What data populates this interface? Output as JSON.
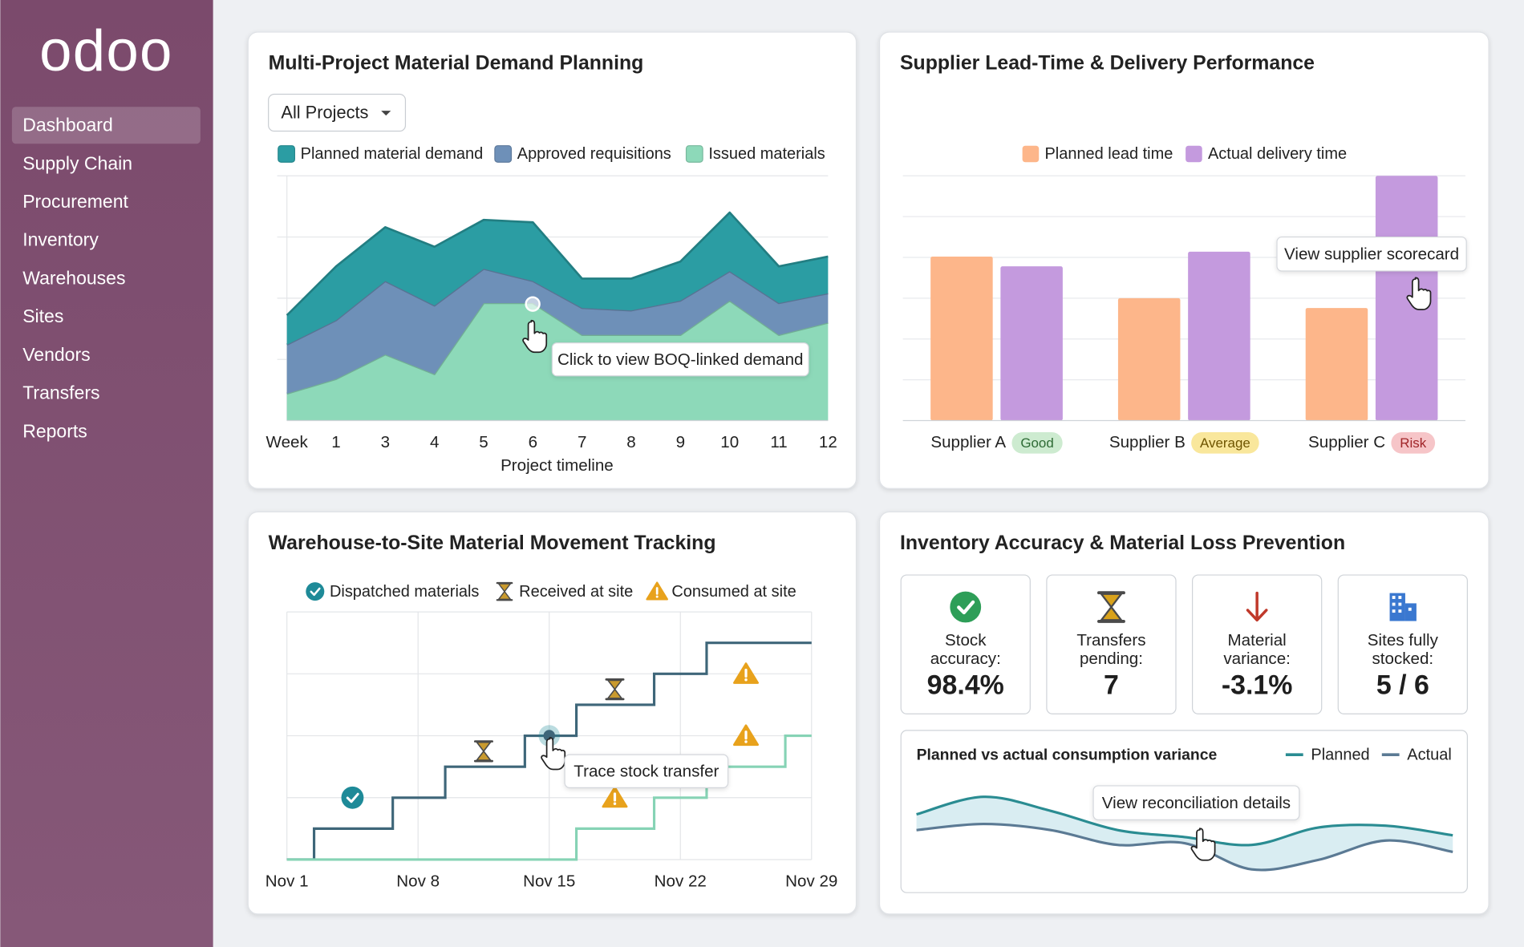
{
  "brand": "odoo",
  "sidebar": {
    "items": [
      {
        "label": "Dashboard",
        "active": true
      },
      {
        "label": "Supply Chain"
      },
      {
        "label": "Procurement"
      },
      {
        "label": "Inventory"
      },
      {
        "label": "Warehouses"
      },
      {
        "label": "Sites"
      },
      {
        "label": "Vendors"
      },
      {
        "label": "Transfers"
      },
      {
        "label": "Reports"
      }
    ]
  },
  "chart_data": [
    {
      "type": "stacked-area",
      "title": "Multi-Project Material Demand Planning",
      "dropdown": "All Projects",
      "categories": [
        "Week",
        "1",
        "3",
        "4",
        "5",
        "6",
        "7",
        "8",
        "9",
        "10",
        "11",
        "12"
      ],
      "x_label": "Project timeline",
      "ylim": [
        0,
        100
      ],
      "series": [
        {
          "name": "Planned material demand",
          "color": "#2b9da3",
          "values": [
            12,
            22,
            22,
            24,
            20,
            24,
            12,
            13,
            16,
            24,
            15,
            15
          ]
        },
        {
          "name": "Approved requisitions",
          "color": "#6e90b8",
          "values": [
            20,
            24,
            30,
            28,
            14,
            9,
            11,
            10,
            14,
            12,
            13,
            12
          ]
        },
        {
          "name": "Issued materials",
          "color": "#8dd9b9",
          "values": [
            11,
            17,
            27,
            19,
            48,
            48,
            35,
            35,
            35,
            49,
            35,
            40
          ]
        }
      ],
      "annotation": "Click to view BOQ-linked demand"
    },
    {
      "type": "grouped-bar",
      "title": "Supplier Lead-Time & Delivery Performance",
      "categories": [
        "Supplier A",
        "Supplier B",
        "Supplier C"
      ],
      "category_badges": [
        {
          "text": "Good",
          "color": "#cdebd0",
          "text_color": "#2e6b35"
        },
        {
          "text": "Average",
          "color": "#f9e79c",
          "text_color": "#6e5400"
        },
        {
          "text": "Risk",
          "color": "#f6c5c8",
          "text_color": "#a1262a"
        }
      ],
      "ylim": [
        0,
        100
      ],
      "series": [
        {
          "name": "Planned lead time",
          "color": "#fdb68a",
          "values": [
            67,
            50,
            46
          ]
        },
        {
          "name": "Actual delivery time",
          "color": "#c49ade",
          "values": [
            63,
            69,
            100
          ]
        }
      ],
      "annotation": "View supplier scorecard"
    },
    {
      "type": "step",
      "title": "Warehouse-to-Site Material Movement Tracking",
      "xlim": [
        1,
        29
      ],
      "xticks": [
        {
          "value": 1,
          "label": "Nov 1"
        },
        {
          "value": 8,
          "label": "Nov 8"
        },
        {
          "value": 15,
          "label": "Nov 15"
        },
        {
          "value": 22,
          "label": "Nov 22"
        },
        {
          "value": 29,
          "label": "Nov 29"
        }
      ],
      "ylim": [
        0,
        8
      ],
      "lines": [
        {
          "color": "#3e6679",
          "x": [
            1,
            2.45,
            6.65,
            9.45,
            13.7,
            16.45,
            20.6,
            23.4,
            29
          ],
          "values": [
            0,
            1,
            2,
            3,
            4,
            5,
            6,
            7,
            7
          ]
        },
        {
          "color": "#86d3b5",
          "x": [
            1,
            16.45,
            20.6,
            23.4,
            27.6,
            29
          ],
          "values": [
            0,
            1,
            2,
            3,
            4,
            4
          ]
        }
      ],
      "series": [
        {
          "name": "Dispatched materials",
          "color": "#1e8a98",
          "marker": "check",
          "x": [
            4.5
          ],
          "values": [
            2
          ]
        },
        {
          "name": "Received at site",
          "color": "#c99a2e",
          "marker": "hourglass",
          "x": [
            11.5,
            18.5
          ],
          "values": [
            3.5,
            5.5
          ]
        },
        {
          "name": "Consumed at site",
          "color": "#e8a21c",
          "marker": "warning",
          "x": [
            18.5,
            25.5,
            25.5
          ],
          "values": [
            2,
            4,
            6
          ]
        }
      ],
      "highlight": {
        "x": 15,
        "value": 4
      },
      "annotation": "Trace stock transfer"
    },
    {
      "type": "line",
      "title": "Planned vs actual consumption variance",
      "smooth": true,
      "ylim": [
        0,
        100
      ],
      "series": [
        {
          "name": "Planned",
          "color": "#2a8c92",
          "values": [
            74,
            94,
            78,
            56,
            48,
            39,
            59,
            61,
            50
          ]
        },
        {
          "name": "Actual",
          "color": "#5b7a94",
          "values": [
            56,
            63,
            56,
            39,
            41,
            11,
            22,
            44,
            31
          ]
        }
      ],
      "annotation": "View reconciliation details"
    }
  ],
  "kpi_panel": {
    "title": "Inventory Accuracy & Material Loss Prevention",
    "cards": [
      {
        "icon": "check",
        "color": "#2e9e58",
        "label": [
          "Stock",
          "accuracy:"
        ],
        "value": "98.4%"
      },
      {
        "icon": "hourglass",
        "color": "#d9a21b",
        "label": [
          "Transfers",
          "pending:"
        ],
        "value": "7"
      },
      {
        "icon": "arrow-down",
        "color": "#c0392b",
        "label": [
          "Material",
          "variance:"
        ],
        "value": "-3.1%"
      },
      {
        "icon": "building",
        "color": "#3a78d0",
        "label": [
          "Sites fully",
          "stocked:"
        ],
        "value": "5 / 6"
      }
    ]
  }
}
